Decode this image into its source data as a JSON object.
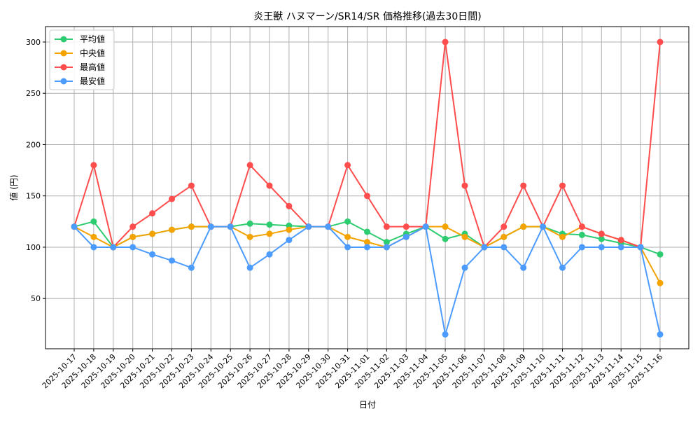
{
  "chart_data": {
    "type": "line",
    "title": "炎王獣 ハヌマーン/SR14/SR 価格推移(過去30日間)",
    "xlabel": "日付",
    "ylabel": "値 (円)",
    "ylim": [
      1,
      315
    ],
    "yticks": [
      50,
      100,
      150,
      200,
      250,
      300
    ],
    "grid": true,
    "legend_position": "top-left",
    "x": [
      "2025-10-17",
      "2025-10-18",
      "2025-10-19",
      "2025-10-20",
      "2025-10-21",
      "2025-10-22",
      "2025-10-23",
      "2025-10-24",
      "2025-10-25",
      "2025-10-26",
      "2025-10-27",
      "2025-10-28",
      "2025-10-29",
      "2025-10-30",
      "2025-10-31",
      "2025-11-01",
      "2025-11-02",
      "2025-11-03",
      "2025-11-04",
      "2025-11-05",
      "2025-11-06",
      "2025-11-07",
      "2025-11-08",
      "2025-11-09",
      "2025-11-10",
      "2025-11-11",
      "2025-11-12",
      "2025-11-13",
      "2025-11-14",
      "2025-11-15",
      "2025-11-16"
    ],
    "series": [
      {
        "name": "平均値",
        "color": "#2ecc71",
        "values": [
          120,
          125,
          100,
          110,
          113,
          117,
          120,
          120,
          120,
          123,
          122,
          121,
          120,
          120,
          125,
          115,
          105,
          113,
          120,
          108,
          113,
          100,
          110,
          120,
          120,
          113,
          112,
          108,
          104,
          100,
          93
        ]
      },
      {
        "name": "中央値",
        "color": "#f5a300",
        "values": [
          120,
          110,
          100,
          110,
          113,
          117,
          120,
          120,
          120,
          110,
          113,
          117,
          120,
          120,
          110,
          105,
          100,
          110,
          120,
          120,
          110,
          100,
          110,
          120,
          120,
          110,
          120,
          113,
          107,
          100,
          65
        ]
      },
      {
        "name": "最高値",
        "color": "#ff4c4c",
        "values": [
          120,
          180,
          100,
          120,
          133,
          147,
          160,
          120,
          120,
          180,
          160,
          140,
          120,
          120,
          180,
          150,
          120,
          120,
          120,
          300,
          160,
          100,
          120,
          160,
          120,
          160,
          120,
          113,
          107,
          100,
          300
        ]
      },
      {
        "name": "最安値",
        "color": "#4c9bff",
        "values": [
          120,
          100,
          100,
          100,
          93,
          87,
          80,
          120,
          120,
          80,
          93,
          107,
          120,
          120,
          100,
          100,
          100,
          110,
          120,
          15,
          80,
          100,
          100,
          80,
          120,
          80,
          100,
          100,
          100,
          100,
          15
        ]
      }
    ]
  }
}
